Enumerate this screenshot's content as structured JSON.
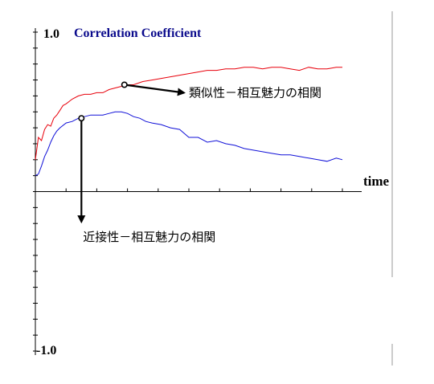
{
  "chart_data": {
    "type": "line",
    "title": "Correlation Coefficient",
    "xlabel": "time",
    "ylabel": "",
    "y_tick_labels": {
      "top": "1.0",
      "bottom": "-1.0"
    },
    "ylim": [
      -1.0,
      1.0
    ],
    "xlim": [
      0,
      100
    ],
    "grid": false,
    "colors": {
      "similarity": "#e8000b",
      "proximity": "#1010d8",
      "title": "#0a0a8c",
      "axis": "#000000"
    },
    "series": [
      {
        "name": "類似性－相互魅力の相関",
        "color": "#e8000b",
        "x": [
          0,
          1,
          2,
          3,
          4,
          5,
          6,
          7,
          8,
          9,
          10,
          12,
          14,
          16,
          18,
          20,
          22,
          24,
          26,
          28,
          30,
          32,
          35,
          38,
          41,
          44,
          47,
          50,
          53,
          56,
          59,
          62,
          65,
          68,
          71,
          74,
          77,
          80,
          83,
          86,
          89,
          92,
          95,
          98,
          100
        ],
        "y": [
          0.2,
          0.34,
          0.32,
          0.39,
          0.42,
          0.41,
          0.46,
          0.48,
          0.51,
          0.54,
          0.55,
          0.58,
          0.6,
          0.61,
          0.61,
          0.62,
          0.62,
          0.64,
          0.65,
          0.66,
          0.67,
          0.67,
          0.69,
          0.7,
          0.71,
          0.72,
          0.73,
          0.74,
          0.75,
          0.76,
          0.76,
          0.77,
          0.77,
          0.78,
          0.78,
          0.77,
          0.78,
          0.78,
          0.77,
          0.76,
          0.78,
          0.77,
          0.77,
          0.78,
          0.78
        ]
      },
      {
        "name": "近接性－相互魅力の相関",
        "color": "#1010d8",
        "x": [
          0,
          1,
          2,
          3,
          4,
          5,
          6,
          7,
          8,
          10,
          12,
          14,
          16,
          18,
          20,
          22,
          24,
          26,
          28,
          30,
          32,
          34,
          36,
          38,
          41,
          44,
          47,
          50,
          53,
          56,
          59,
          62,
          65,
          68,
          71,
          74,
          77,
          80,
          83,
          86,
          89,
          92,
          95,
          98,
          100
        ],
        "y": [
          0.1,
          0.11,
          0.16,
          0.22,
          0.26,
          0.31,
          0.35,
          0.38,
          0.4,
          0.43,
          0.44,
          0.46,
          0.47,
          0.48,
          0.48,
          0.48,
          0.49,
          0.5,
          0.5,
          0.49,
          0.47,
          0.46,
          0.44,
          0.43,
          0.42,
          0.4,
          0.39,
          0.34,
          0.34,
          0.31,
          0.32,
          0.3,
          0.29,
          0.27,
          0.26,
          0.25,
          0.24,
          0.23,
          0.23,
          0.22,
          0.21,
          0.2,
          0.19,
          0.21,
          0.2
        ]
      }
    ],
    "annotations": [
      {
        "label": "類似性－相互魅力の相関",
        "series": 0,
        "point_x": 29,
        "point_y": 0.67,
        "text_x": 50,
        "text_y": 0.65,
        "direction": "right"
      },
      {
        "label": "近接性－相互魅力の相関",
        "series": 1,
        "point_x": 15,
        "point_y": 0.46,
        "text_x": 15,
        "text_y": -0.22,
        "direction": "down"
      }
    ]
  }
}
